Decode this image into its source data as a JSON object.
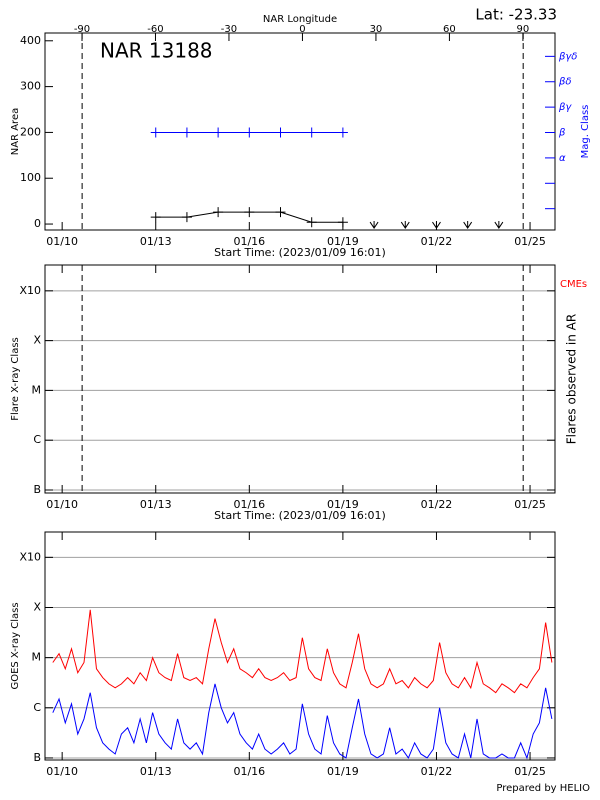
{
  "chart_data": [
    {
      "type": "line",
      "title": "NAR 13188",
      "subtitle": "Lat: -23.33",
      "x_label": "Start Time: (2023/01/09 16:01)",
      "y_label": "NAR Area",
      "x2_label": "NAR Longitude",
      "y2_label": "Mag. Class",
      "y2_color": "#0000ff",
      "xlim": [
        9.45,
        25.8
      ],
      "xticks": [
        {
          "value": 10,
          "label": "01/10"
        },
        {
          "value": 13,
          "label": "01/13"
        },
        {
          "value": 16,
          "label": "01/16"
        },
        {
          "value": 19,
          "label": "01/19"
        },
        {
          "value": 22,
          "label": "01/22"
        },
        {
          "value": 25,
          "label": "01/25"
        }
      ],
      "x2lim": [
        -105.1,
        103.1
      ],
      "x2ticks": [
        -90,
        -60,
        -30,
        0,
        30,
        60,
        90
      ],
      "ylim": [
        -13,
        417
      ],
      "yticks": [
        0,
        100,
        200,
        300,
        400
      ],
      "y2lim": [
        -1.84,
        5.92
      ],
      "y2ticks": [
        {
          "value": 1,
          "label": "α"
        },
        {
          "value": 2,
          "label": "β"
        },
        {
          "value": 3,
          "label": "βγ"
        },
        {
          "value": 4,
          "label": "βδ"
        },
        {
          "value": 5,
          "label": "βγδ"
        }
      ],
      "y2minor_ticks": [
        -1,
        0
      ],
      "vlines": [
        10.64,
        24.78
      ],
      "series": [
        {
          "color": "#000000",
          "marker": "plus",
          "x": [
            13,
            14,
            15,
            16,
            17,
            18,
            19
          ],
          "values": [
            15,
            15,
            26,
            26,
            26,
            4,
            4
          ]
        },
        {
          "color": "#000000",
          "marker": "arrow",
          "line": false,
          "x": [
            20,
            21,
            22,
            23,
            24
          ],
          "values": [
            0,
            0,
            0,
            0,
            0
          ]
        },
        {
          "color": "#0000ff",
          "marker": "plus",
          "axis": "y2",
          "x": [
            13,
            14,
            15,
            16,
            17,
            18,
            19
          ],
          "values": [
            2,
            2,
            2,
            2,
            2,
            2,
            2
          ]
        }
      ]
    },
    {
      "type": "line",
      "x_label": "Start Time: (2023/01/09 16:01)",
      "y_label": "Flare X-ray Class",
      "y2_label": "Flares observed in AR",
      "annotation": "CMEs",
      "annotation_color": "#ff0000",
      "xlim": [
        9.45,
        25.8
      ],
      "xticks": [
        {
          "value": 10,
          "label": "01/10"
        },
        {
          "value": 13,
          "label": "01/13"
        },
        {
          "value": 16,
          "label": "01/16"
        },
        {
          "value": 19,
          "label": "01/19"
        },
        {
          "value": 22,
          "label": "01/22"
        },
        {
          "value": 25,
          "label": "01/25"
        }
      ],
      "ylim": [
        8.7e-08,
        0.0033
      ],
      "log_y": true,
      "grid": true,
      "yticks": [
        {
          "value": 1e-07,
          "label": "B"
        },
        {
          "value": 1e-06,
          "label": "C"
        },
        {
          "value": 1e-05,
          "label": "M"
        },
        {
          "value": 0.0001,
          "label": "X"
        },
        {
          "value": 0.001,
          "label": "X10"
        }
      ],
      "vlines": [
        10.64,
        24.78
      ],
      "series": []
    },
    {
      "type": "line",
      "y_label": "GOES X-ray Class",
      "footer": "Prepared by HELIO",
      "xlim": [
        9.45,
        25.8
      ],
      "xticks": [
        {
          "value": 10,
          "label": "01/10"
        },
        {
          "value": 13,
          "label": "01/13"
        },
        {
          "value": 16,
          "label": "01/16"
        },
        {
          "value": 19,
          "label": "01/19"
        },
        {
          "value": 22,
          "label": "01/22"
        },
        {
          "value": 25,
          "label": "01/25"
        }
      ],
      "ylim": [
        9.1e-08,
        0.0032
      ],
      "log_y": true,
      "grid": true,
      "yticks": [
        {
          "value": 1e-07,
          "label": "B"
        },
        {
          "value": 1e-06,
          "label": "C"
        },
        {
          "value": 1e-05,
          "label": "M"
        },
        {
          "value": 0.0001,
          "label": "X"
        },
        {
          "value": 0.001,
          "label": "X10"
        }
      ],
      "x": [
        9.7,
        9.9,
        10.1,
        10.3,
        10.5,
        10.7,
        10.9,
        11.1,
        11.3,
        11.5,
        11.7,
        11.9,
        12.1,
        12.3,
        12.5,
        12.7,
        12.9,
        13.1,
        13.3,
        13.5,
        13.7,
        13.9,
        14.1,
        14.3,
        14.5,
        14.7,
        14.9,
        15.1,
        15.3,
        15.5,
        15.7,
        15.9,
        16.1,
        16.3,
        16.5,
        16.7,
        16.9,
        17.1,
        17.3,
        17.5,
        17.7,
        17.9,
        18.1,
        18.3,
        18.5,
        18.7,
        18.9,
        19.1,
        19.3,
        19.5,
        19.7,
        19.9,
        20.1,
        20.3,
        20.5,
        20.7,
        20.9,
        21.1,
        21.3,
        21.5,
        21.7,
        21.9,
        22.1,
        22.3,
        22.5,
        22.7,
        22.9,
        23.1,
        23.3,
        23.5,
        23.7,
        23.9,
        24.1,
        24.3,
        24.5,
        24.7,
        24.9,
        25.1,
        25.3,
        25.5,
        25.7
      ],
      "series": [
        {
          "color": "#ff0000",
          "values": [
            8e-06,
            1.2e-05,
            6e-06,
            1.5e-05,
            5e-06,
            8e-06,
            9e-05,
            6e-06,
            4e-06,
            3e-06,
            2.5e-06,
            3e-06,
            4e-06,
            3e-06,
            5e-06,
            3.5e-06,
            1e-05,
            5e-06,
            4e-06,
            3.5e-06,
            1.2e-05,
            4e-06,
            3.5e-06,
            4e-06,
            3e-06,
            1.5e-05,
            6e-05,
            2e-05,
            8e-06,
            1.5e-05,
            6e-06,
            5e-06,
            4e-06,
            6e-06,
            4e-06,
            3.5e-06,
            4e-06,
            5e-06,
            3.5e-06,
            4e-06,
            2.5e-05,
            6e-06,
            4e-06,
            3.5e-06,
            1.5e-05,
            5e-06,
            3e-06,
            2.5e-06,
            8e-06,
            3e-05,
            6e-06,
            3e-06,
            2.5e-06,
            3e-06,
            6e-06,
            3e-06,
            3.5e-06,
            2.5e-06,
            4e-06,
            3e-06,
            2.5e-06,
            3.5e-06,
            2e-05,
            5e-06,
            3e-06,
            2.5e-06,
            4e-06,
            2.5e-06,
            8e-06,
            3e-06,
            2.5e-06,
            2e-06,
            3e-06,
            2.5e-06,
            2e-06,
            3e-06,
            2.5e-06,
            4e-06,
            6e-06,
            5e-05,
            8e-06
          ]
        },
        {
          "color": "#0000ff",
          "values": [
            8e-07,
            1.5e-06,
            5e-07,
            1.2e-06,
            3e-07,
            6e-07,
            2e-06,
            4e-07,
            2e-07,
            1.5e-07,
            1.2e-07,
            3e-07,
            4e-07,
            2e-07,
            6e-07,
            2e-07,
            8e-07,
            3e-07,
            2e-07,
            1.5e-07,
            6e-07,
            2e-07,
            1.5e-07,
            2e-07,
            1.2e-07,
            8e-07,
            3e-06,
            1e-06,
            5e-07,
            8e-07,
            3e-07,
            2e-07,
            1.5e-07,
            3e-07,
            1.5e-07,
            1.2e-07,
            1.5e-07,
            2e-07,
            1.2e-07,
            1.5e-07,
            1.2e-06,
            3e-07,
            1.5e-07,
            1.2e-07,
            7e-07,
            2e-07,
            1.2e-07,
            1e-07,
            4e-07,
            1.5e-06,
            3e-07,
            1.2e-07,
            1e-07,
            1.2e-07,
            4e-07,
            1.2e-07,
            1.5e-07,
            1e-07,
            2e-07,
            1.2e-07,
            1e-07,
            1.5e-07,
            1e-06,
            2e-07,
            1.2e-07,
            1e-07,
            3e-07,
            1e-07,
            6e-07,
            1.2e-07,
            1e-07,
            1e-07,
            1.2e-07,
            1e-07,
            1e-07,
            2e-07,
            1e-07,
            3e-07,
            5e-07,
            2.5e-06,
            6e-07
          ]
        }
      ]
    }
  ]
}
